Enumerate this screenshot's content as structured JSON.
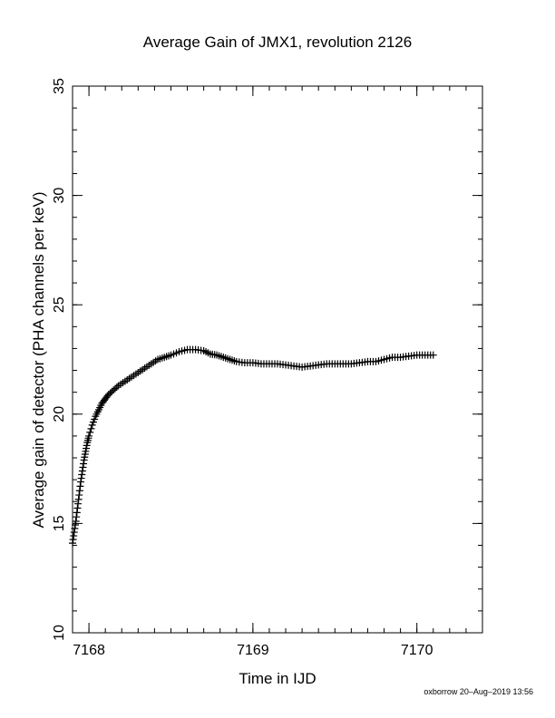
{
  "chart_data": {
    "type": "scatter",
    "title": "Average Gain of JMX1, revolution 2126",
    "xlabel": "Time in IJD",
    "ylabel": "Average gain of detector (PHA channels per keV)",
    "xlim": [
      7167.9,
      7170.4
    ],
    "ylim": [
      10,
      35
    ],
    "x_ticks": [
      7168,
      7169,
      7170
    ],
    "x_tick_labels": [
      "7168",
      "7169",
      "7170"
    ],
    "y_ticks": [
      10,
      15,
      20,
      25,
      30,
      35
    ],
    "y_tick_labels": [
      "10",
      "15",
      "20",
      "25",
      "30",
      "35"
    ],
    "marker": "plus",
    "grid": false,
    "legend": "none",
    "series": [
      {
        "x": [
          7167.9,
          7167.91,
          7167.92,
          7167.93,
          7167.94,
          7167.95,
          7167.96,
          7167.97,
          7167.98,
          7167.99,
          7168.0,
          7168.02,
          7168.04,
          7168.06,
          7168.08,
          7168.1,
          7168.12,
          7168.15,
          7168.18,
          7168.22,
          7168.26,
          7168.3,
          7168.34,
          7168.38,
          7168.42,
          7168.46,
          7168.5,
          7168.55,
          7168.6,
          7168.65,
          7168.7,
          7168.74,
          7168.78,
          7168.82,
          7168.86,
          7168.9,
          7168.95,
          7169.0,
          7169.05,
          7169.1,
          7169.15,
          7169.2,
          7169.25,
          7169.3,
          7169.35,
          7169.4,
          7169.45,
          7169.5,
          7169.55,
          7169.6,
          7169.65,
          7169.7,
          7169.75,
          7169.8,
          7169.85,
          7169.9,
          7169.95,
          7170.0,
          7170.05,
          7170.1
        ],
        "y": [
          14.1,
          14.6,
          15.1,
          15.7,
          16.3,
          16.9,
          17.4,
          17.9,
          18.3,
          18.7,
          19.0,
          19.5,
          19.9,
          20.2,
          20.5,
          20.7,
          20.9,
          21.1,
          21.3,
          21.5,
          21.7,
          21.9,
          22.1,
          22.3,
          22.5,
          22.6,
          22.7,
          22.85,
          22.95,
          22.95,
          22.9,
          22.75,
          22.7,
          22.6,
          22.5,
          22.4,
          22.35,
          22.35,
          22.3,
          22.3,
          22.3,
          22.25,
          22.2,
          22.15,
          22.2,
          22.25,
          22.3,
          22.3,
          22.3,
          22.3,
          22.35,
          22.4,
          22.4,
          22.5,
          22.6,
          22.6,
          22.65,
          22.7,
          22.7,
          22.7
        ]
      }
    ]
  },
  "footer": "oxborrow 20–Aug–2019 13:56"
}
